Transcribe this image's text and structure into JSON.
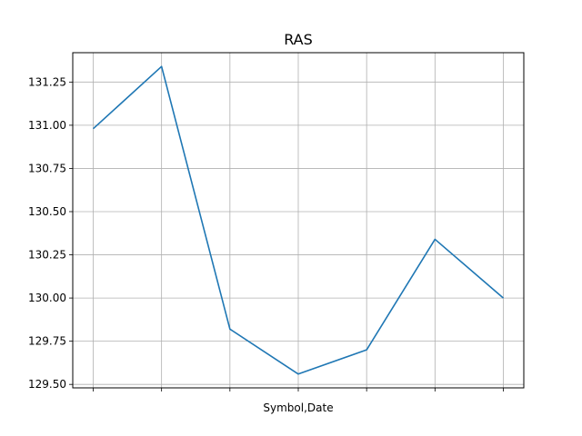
{
  "chart_data": {
    "type": "line",
    "title": "RAS",
    "xlabel": "Symbol,Date",
    "ylabel": "",
    "x_tick_labels": [
      "",
      "",
      "",
      "",
      "",
      "",
      ""
    ],
    "series": [
      {
        "values": [
          130.98,
          131.34,
          129.82,
          129.56,
          129.7,
          130.34,
          130.0
        ],
        "color": "#1f77b4"
      }
    ],
    "yticks": [
      129.5,
      129.75,
      130.0,
      130.25,
      130.5,
      130.75,
      131.0,
      131.25
    ],
    "ytick_labels": [
      "129.50",
      "129.75",
      "130.00",
      "130.25",
      "130.50",
      "130.75",
      "131.00",
      "131.25"
    ],
    "ylim": [
      129.48,
      131.42
    ],
    "grid": true,
    "legend": false
  }
}
